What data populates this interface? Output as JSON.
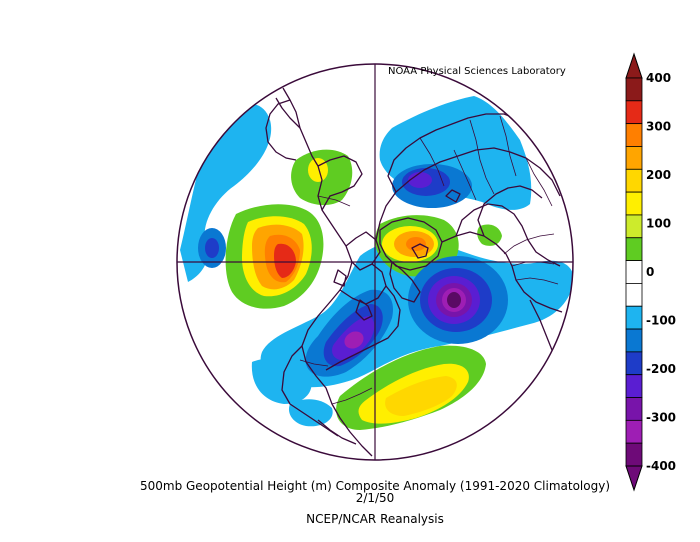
{
  "credit": "NOAA Physical Sciences Laboratory",
  "title": "500mb Geopotential Height (m) Composite Anomaly (1991-2020 Climatology)",
  "date": "2/1/50",
  "source": "NCEP/NCAR Reanalysis",
  "colorbar": {
    "ticks": [
      "400",
      "300",
      "200",
      "100",
      "0",
      "-100",
      "-200",
      "-300",
      "-400"
    ],
    "colors": [
      "#8b1a1a",
      "#e52a17",
      "#ff7f00",
      "#ffa500",
      "#ffd700",
      "#ffef00",
      "#cdeb2c",
      "#5fcc22",
      "#ffffff",
      "#ffffff",
      "#1eb4f0",
      "#0a78d2",
      "#1e3cc8",
      "#5a1ed2",
      "#7814aa",
      "#9e1eb4",
      "#6e0a78"
    ]
  },
  "chart_data": {
    "type": "heatmap",
    "projection": "north-polar-stereographic",
    "variable": "500mb Geopotential Height (m) Composite Anomaly",
    "range": [
      -400,
      400
    ],
    "anomaly_centers": [
      {
        "sign": "positive",
        "max_value": 350
      },
      {
        "sign": "negative",
        "max_value": -400
      },
      {
        "sign": "negative",
        "max_value": -300
      },
      {
        "sign": "negative",
        "max_value": -230
      },
      {
        "sign": "positive",
        "max_value": 230
      },
      {
        "sign": "positive",
        "max_value": 300
      },
      {
        "sign": "negative",
        "max_value": -130
      }
    ]
  }
}
